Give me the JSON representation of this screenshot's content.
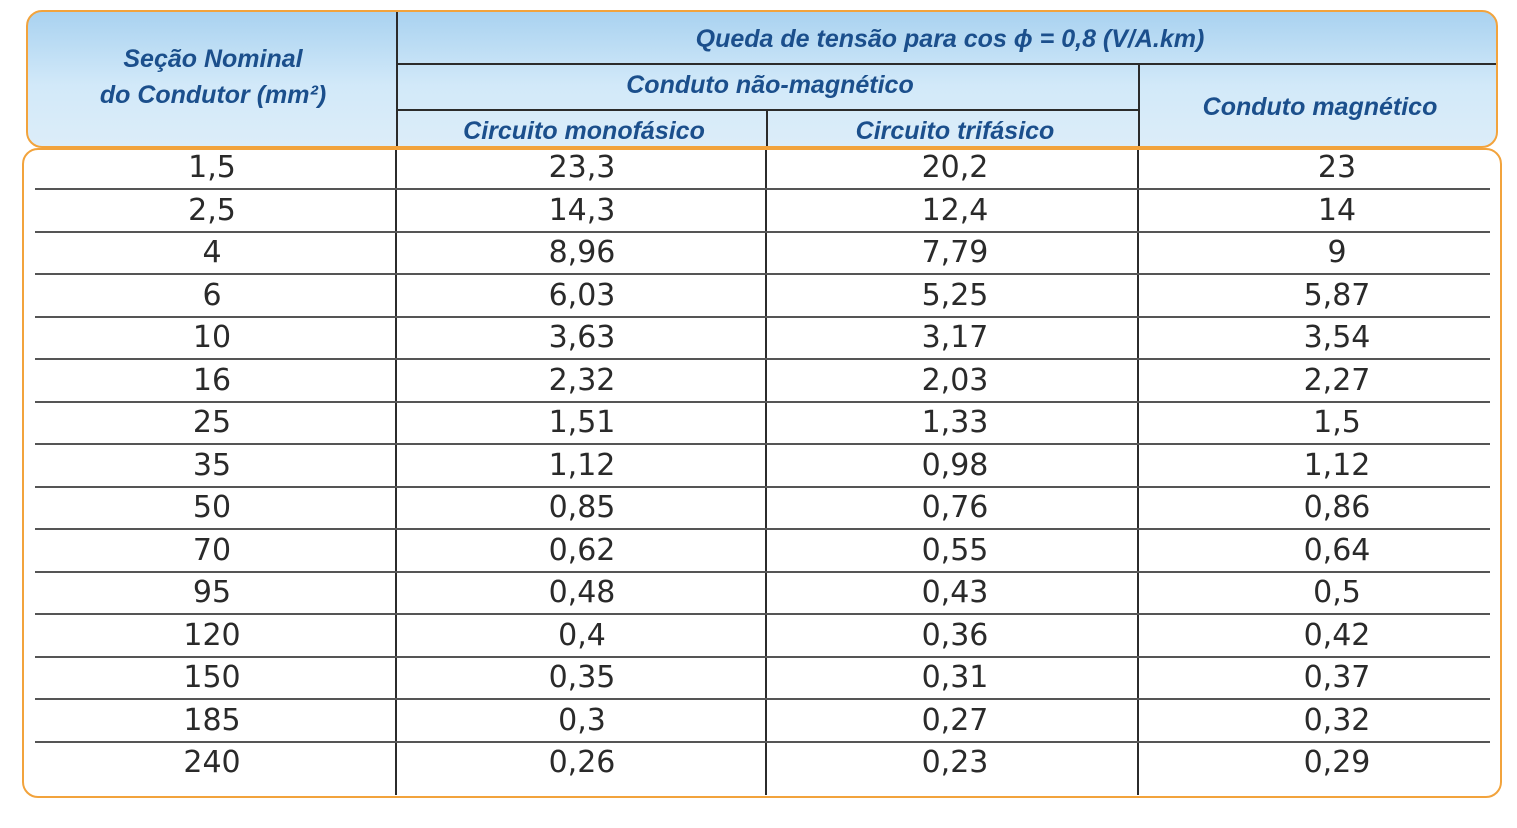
{
  "header": {
    "col1_line1": "Seção Nominal",
    "col1_line2": "do Condutor (mm²)",
    "main_title": "Queda de tensão para cos ϕ = 0,8 (V/A.km)",
    "non_magnetic": "Conduto não-magnético",
    "single_phase": "Circuito monofásico",
    "three_phase": "Circuito trifásico",
    "magnetic": "Conduto magnético"
  },
  "rows": [
    [
      "1,5",
      "23,3",
      "20,2",
      "23"
    ],
    [
      "2,5",
      "14,3",
      "12,4",
      "14"
    ],
    [
      "4",
      "8,96",
      "7,79",
      "9"
    ],
    [
      "6",
      "6,03",
      "5,25",
      "5,87"
    ],
    [
      "10",
      "3,63",
      "3,17",
      "3,54"
    ],
    [
      "16",
      "2,32",
      "2,03",
      "2,27"
    ],
    [
      "25",
      "1,51",
      "1,33",
      "1,5"
    ],
    [
      "35",
      "1,12",
      "0,98",
      "1,12"
    ],
    [
      "50",
      "0,85",
      "0,76",
      "0,86"
    ],
    [
      "70",
      "0,62",
      "0,55",
      "0,64"
    ],
    [
      "95",
      "0,48",
      "0,43",
      "0,5"
    ],
    [
      "120",
      "0,4",
      "0,36",
      "0,42"
    ],
    [
      "150",
      "0,35",
      "0,31",
      "0,37"
    ],
    [
      "185",
      "0,3",
      "0,27",
      "0,32"
    ],
    [
      "240",
      "0,26",
      "0,23",
      "0,29"
    ]
  ],
  "colors": {
    "border": "#f2a33c",
    "header_text": "#1b4f8c",
    "header_bg": "#c4e2f7"
  }
}
